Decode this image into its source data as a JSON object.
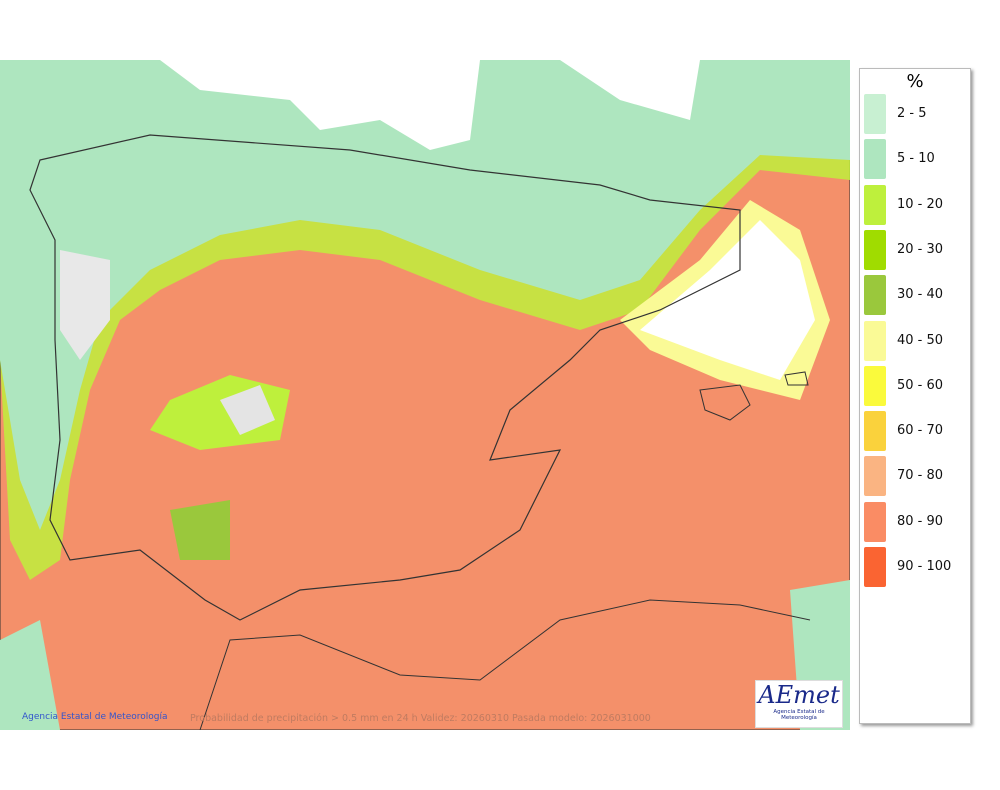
{
  "legend": {
    "title": "%",
    "items": [
      {
        "label": "2 - 5",
        "color": "#c8f0d2"
      },
      {
        "label": "5 - 10",
        "color": "#aee6bf"
      },
      {
        "label": "10 - 20",
        "color": "#bef03c"
      },
      {
        "label": "20 - 30",
        "color": "#a0dc00"
      },
      {
        "label": "30 - 40",
        "color": "#9ac83c"
      },
      {
        "label": "40 - 50",
        "color": "#fafa96"
      },
      {
        "label": "50 - 60",
        "color": "#fafa3c"
      },
      {
        "label": "60 - 70",
        "color": "#fad23c"
      },
      {
        "label": "70 - 80",
        "color": "#fab482"
      },
      {
        "label": "80 - 90",
        "color": "#fa8c64"
      },
      {
        "label": "90 - 100",
        "color": "#fa6432"
      }
    ]
  },
  "footer": {
    "credit": "Agencia Estatal de Meteorología",
    "caption": "Probabilidad de precipitación > 0.5 mm en 24 h Validez: 20260310 Pasada modelo: 2026031000"
  },
  "logo": {
    "name": "AEmet",
    "subtitle": "Agencia Estatal de Meteorología"
  }
}
